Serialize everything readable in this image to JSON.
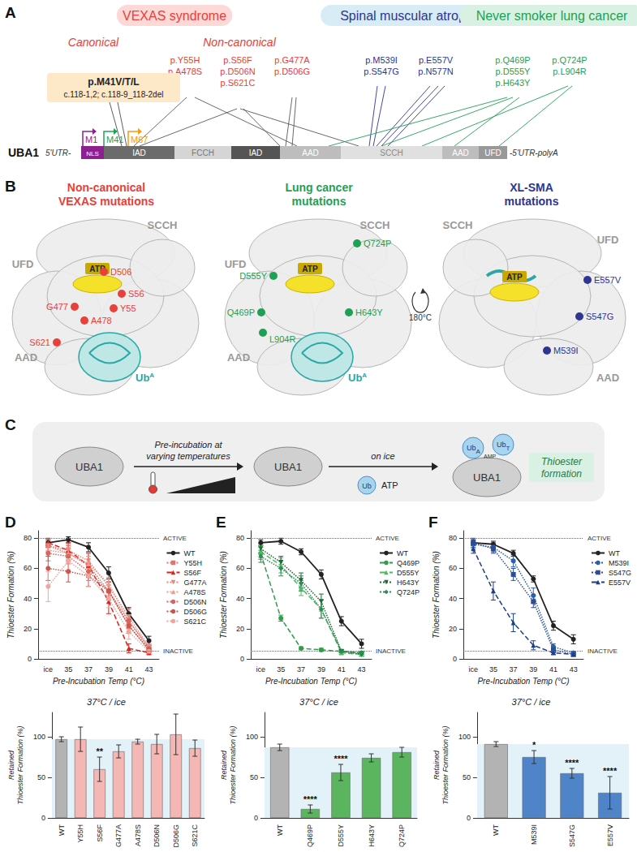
{
  "panel_labels": [
    "A",
    "B",
    "C",
    "D",
    "E",
    "F"
  ],
  "diagram": {
    "A": {
      "headers": [
        {
          "text": "VEXAS syndrome",
          "color": "#e8403a",
          "fill": "#fcd9d6"
        },
        {
          "text": "Spinal muscular atrophy",
          "color": "#2e3592",
          "fill": "#d8ecf6"
        },
        {
          "text": "Never smoker lung cancer",
          "color": "#1fa055",
          "fill": "#d8f1e2"
        }
      ],
      "subheaders": [
        "Canonical",
        "Non-canonical"
      ],
      "canonical_box": [
        "p.M41V/T/L",
        "c.118-1,2; c.118-9_118-2del"
      ],
      "vexas_mutations": [
        [
          "p.Y55H",
          "p.A478S"
        ],
        [
          "p.S56F",
          "p.D506N",
          "p.S621C"
        ],
        [
          "p.G477A",
          "p.D506G"
        ]
      ],
      "sma_mutations": [
        [
          "p.M539I",
          "p.S547G"
        ],
        [
          "p.E557V",
          "p.N577N"
        ]
      ],
      "lung_mutations": [
        [
          "p.Q469P",
          "p.D555Y",
          "p.H643Y"
        ],
        [
          "p.Q724P",
          "p.L904R"
        ]
      ],
      "start_sites": [
        "M1",
        "M41",
        "M67"
      ],
      "gene": "UBA1",
      "utr5": "5'UTR-",
      "utr3": "-5'UTR-polyA",
      "domains": [
        "NLS",
        "IAD",
        "FCCH",
        "IAD",
        "AAD",
        "SCCH",
        "AAD",
        "UFD"
      ]
    },
    "B": {
      "titles": [
        [
          "Non-canonical",
          "VEXAS mutations"
        ],
        [
          "Lung cancer",
          "mutations"
        ],
        [
          "XL-SMA",
          "mutations"
        ]
      ],
      "domain_labels": [
        "SCCH",
        "UFD",
        "AAD"
      ],
      "ligand": "ATP",
      "ubiquitin": "Ub",
      "ubiquitin_sup": "A",
      "rotation": "180°C",
      "vexas_sites": [
        "D506",
        "S56",
        "Y55",
        "G477",
        "A478",
        "S621"
      ],
      "lung_sites": [
        "Q724P",
        "D555Y",
        "Q469P",
        "H643Y",
        "L904R"
      ],
      "sma_sites": [
        "E557V",
        "S547G",
        "M539I"
      ]
    },
    "C": {
      "enzyme": "UBA1",
      "step1": [
        "Pre-incubation at",
        "varying temperatures"
      ],
      "step2": "on ice",
      "ub": "Ub",
      "atp": "ATP",
      "amp": "AMP",
      "sub_a": "A",
      "sub_t": "T",
      "result": [
        "Thioester",
        "formation"
      ]
    }
  },
  "chart_data": [
    {
      "type": "line",
      "categories": [
        "ice",
        "35",
        "37",
        "39",
        "41",
        "43"
      ],
      "x_label": "Pre-Incubation Temp (°C)",
      "y_label": "Thioester Formation (%)",
      "ylim": [
        0,
        85
      ],
      "yticks": [
        0,
        20,
        40,
        60,
        80
      ],
      "legend": "right",
      "annotations": [
        {
          "text": "ACTIVE",
          "y": 80
        },
        {
          "text": "INACTIVE",
          "y": 5
        }
      ],
      "series": [
        {
          "name": "WT",
          "color": "#222222",
          "marker": "circle",
          "line_style": "solid",
          "values": [
            77,
            79,
            74,
            57,
            30,
            12
          ],
          "errors": [
            2,
            2,
            3,
            4,
            4,
            3
          ]
        },
        {
          "name": "Y55H",
          "color": "#e57368",
          "marker": "square",
          "line_style": "dotted",
          "values": [
            75,
            70,
            62,
            45,
            22,
            6
          ],
          "errors": [
            4,
            5,
            6,
            6,
            5,
            2
          ]
        },
        {
          "name": "S56F",
          "color": "#e2231a",
          "marker": "triangle",
          "line_style": "dashed",
          "values": [
            77,
            72,
            62,
            38,
            7,
            4
          ],
          "errors": [
            3,
            5,
            8,
            8,
            3,
            1
          ]
        },
        {
          "name": "G477A",
          "color": "#e8867c",
          "marker": "triangle-down",
          "line_style": "dotted",
          "values": [
            75,
            72,
            65,
            48,
            28,
            8
          ],
          "errors": [
            3,
            4,
            5,
            6,
            5,
            2
          ]
        },
        {
          "name": "A478S",
          "color": "#ef9b92",
          "marker": "triangle",
          "line_style": "dotted",
          "values": [
            72,
            70,
            63,
            50,
            25,
            8
          ],
          "errors": [
            4,
            4,
            5,
            6,
            5,
            2
          ]
        },
        {
          "name": "D506N",
          "color": "#d9665c",
          "marker": "circle",
          "line_style": "dotted",
          "values": [
            70,
            68,
            58,
            45,
            25,
            7
          ],
          "errors": [
            5,
            5,
            6,
            6,
            5,
            2
          ]
        },
        {
          "name": "D506G",
          "color": "#c9574d",
          "marker": "circle",
          "line_style": "dotted",
          "values": [
            60,
            58,
            55,
            45,
            22,
            6
          ],
          "errors": [
            8,
            7,
            7,
            6,
            5,
            2
          ]
        },
        {
          "name": "S621C",
          "color": "#f0a59d",
          "marker": "circle",
          "line_style": "dotted",
          "values": [
            48,
            65,
            55,
            40,
            18,
            5
          ],
          "errors": [
            10,
            8,
            7,
            6,
            5,
            2
          ]
        }
      ]
    },
    {
      "type": "line",
      "categories": [
        "ice",
        "35",
        "37",
        "39",
        "41",
        "43"
      ],
      "x_label": "Pre-Incubation Temp (°C)",
      "y_label": "Thioester Formation (%)",
      "ylim": [
        0,
        85
      ],
      "yticks": [
        0,
        20,
        40,
        60,
        80
      ],
      "legend": "right",
      "annotations": [
        {
          "text": "ACTIVE",
          "y": 80
        },
        {
          "text": "INACTIVE",
          "y": 5
        }
      ],
      "series": [
        {
          "name": "WT",
          "color": "#222222",
          "marker": "circle",
          "line_style": "solid",
          "values": [
            77,
            78,
            71,
            56,
            25,
            10
          ],
          "errors": [
            2,
            2,
            2,
            3,
            3,
            3
          ]
        },
        {
          "name": "Q469P",
          "color": "#2e9e48",
          "marker": "circle",
          "line_style": "dashed",
          "values": [
            70,
            27,
            7,
            6,
            5,
            4
          ],
          "errors": [
            4,
            2,
            1,
            1,
            1,
            1
          ]
        },
        {
          "name": "D555Y",
          "color": "#4fb95f",
          "marker": "triangle",
          "line_style": "dashed",
          "values": [
            71,
            62,
            47,
            33,
            4,
            3
          ],
          "errors": [
            4,
            5,
            5,
            6,
            1,
            1
          ]
        },
        {
          "name": "H643Y",
          "color": "#1f6b35",
          "marker": "triangle-down",
          "line_style": "dotted",
          "values": [
            73,
            64,
            52,
            38,
            5,
            3
          ],
          "errors": [
            3,
            4,
            5,
            5,
            1,
            1
          ]
        },
        {
          "name": "Q724P",
          "color": "#2e8b57",
          "marker": "diamond",
          "line_style": "dotted",
          "values": [
            68,
            60,
            50,
            33,
            5,
            4
          ],
          "errors": [
            4,
            5,
            5,
            6,
            1,
            1
          ]
        }
      ]
    },
    {
      "type": "line",
      "categories": [
        "ice",
        "35",
        "37",
        "39",
        "41",
        "43"
      ],
      "x_label": "Pre-Incubation Temp (°C)",
      "y_label": "Thioester Formation (%)",
      "ylim": [
        0,
        85
      ],
      "yticks": [
        0,
        20,
        40,
        60,
        80
      ],
      "legend": "right",
      "annotations": [
        {
          "text": "ACTIVE",
          "y": 80
        },
        {
          "text": "INACTIVE",
          "y": 5
        }
      ],
      "series": [
        {
          "name": "WT",
          "color": "#222222",
          "marker": "circle",
          "line_style": "solid",
          "values": [
            77,
            76,
            70,
            53,
            22,
            13
          ],
          "errors": [
            2,
            2,
            2,
            2,
            3,
            3
          ]
        },
        {
          "name": "M539I",
          "color": "#2b5fa8",
          "marker": "circle",
          "line_style": "dotted",
          "values": [
            76,
            74,
            65,
            42,
            8,
            4
          ],
          "errors": [
            3,
            3,
            4,
            5,
            2,
            1
          ]
        },
        {
          "name": "S547G",
          "color": "#2b4c9a",
          "marker": "square",
          "line_style": "dotted",
          "values": [
            77,
            73,
            56,
            38,
            6,
            3
          ],
          "errors": [
            3,
            3,
            4,
            4,
            2,
            1
          ]
        },
        {
          "name": "E557V",
          "color": "#1c3f8c",
          "marker": "triangle",
          "line_style": "dashed",
          "values": [
            73,
            45,
            24,
            9,
            4,
            3
          ],
          "errors": [
            3,
            6,
            6,
            3,
            1,
            1
          ]
        }
      ]
    },
    {
      "type": "bar",
      "title": "37°C / ice",
      "y_label": "Retained\nThioester Formation (%)",
      "categories": [
        "WT",
        "Y55H",
        "S56F",
        "G477A",
        "A478S",
        "D506N",
        "D506G",
        "S621C"
      ],
      "values": [
        97,
        97,
        60,
        82,
        94,
        91,
        103,
        86
      ],
      "errors": [
        3,
        15,
        15,
        8,
        3,
        12,
        25,
        10
      ],
      "significance": [
        null,
        null,
        "**",
        null,
        null,
        null,
        null,
        null
      ],
      "colors": [
        "#b3b3b3",
        "#f5b7b4",
        "#f5b7b4",
        "#f5b7b4",
        "#f5b7b4",
        "#f5b7b4",
        "#f5b7b4",
        "#f5b7b4"
      ],
      "ylim": [
        0,
        130
      ],
      "yticks": [
        0,
        50,
        100
      ]
    },
    {
      "type": "bar",
      "title": "37°C / ice",
      "y_label": "Retained\nThioester Formation (%)",
      "categories": [
        "WT",
        "Q469P",
        "D555Y",
        "H643Y",
        "Q724P"
      ],
      "values": [
        87,
        11,
        56,
        74,
        81
      ],
      "errors": [
        4,
        5,
        10,
        5,
        6
      ],
      "significance": [
        null,
        "****",
        "****",
        null,
        null
      ],
      "colors": [
        "#b3b3b3",
        "#5bb55f",
        "#5bb55f",
        "#5bb55f",
        "#5bb55f"
      ],
      "ylim": [
        0,
        130
      ],
      "yticks": [
        0,
        50,
        100
      ]
    },
    {
      "type": "bar",
      "title": "37°C / ice",
      "y_label": "Retained\nThioester Formation (%)",
      "categories": [
        "WT",
        "M539I",
        "S547G",
        "E557V"
      ],
      "values": [
        91,
        75,
        55,
        31
      ],
      "errors": [
        3,
        8,
        6,
        20
      ],
      "significance": [
        null,
        "*",
        "****",
        "****"
      ],
      "colors": [
        "#b3b3b3",
        "#4f84c9",
        "#4f84c9",
        "#4f84c9"
      ],
      "ylim": [
        0,
        130
      ],
      "yticks": [
        0,
        50,
        100
      ]
    }
  ]
}
